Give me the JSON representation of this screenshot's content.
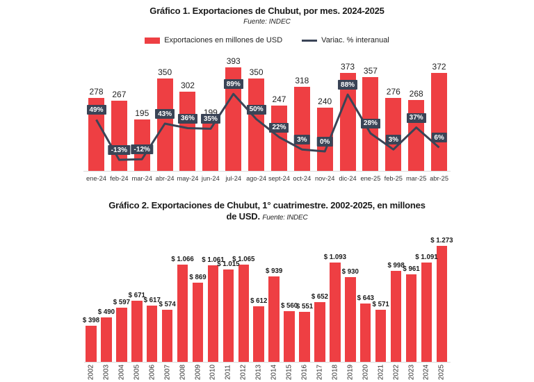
{
  "chart_data": [
    {
      "type": "bar",
      "title": "Gráfico 1. Exportaciones de Chubut, por mes. 2024-2025",
      "source": "Fuente: INDEC",
      "legend": {
        "bars": "Exportaciones en millones de USD",
        "line": "Variac. % interanual"
      },
      "categories": [
        "ene-24",
        "feb-24",
        "mar-24",
        "abr-24",
        "may-24",
        "jun-24",
        "jul-24",
        "ago-24",
        "sept-24",
        "oct-24",
        "nov-24",
        "dic-24",
        "ene-25",
        "feb-25",
        "mar-25",
        "abr-25"
      ],
      "series": [
        {
          "name": "Exportaciones en millones de USD",
          "type": "bar",
          "values": [
            278,
            267,
            195,
            350,
            302,
            199,
            393,
            350,
            247,
            318,
            240,
            373,
            357,
            276,
            268,
            372
          ]
        },
        {
          "name": "Variac. % interanual",
          "type": "line",
          "values": [
            49,
            -13,
            -12,
            43,
            36,
            35,
            89,
            50,
            22,
            3,
            0,
            88,
            28,
            3,
            37,
            6
          ],
          "labels": [
            "49%",
            "-13%",
            "-12%",
            "43%",
            "36%",
            "35%",
            "89%",
            "50%",
            "22%",
            "3%",
            "0%",
            "88%",
            "28%",
            "3%",
            "37%",
            "6%"
          ]
        }
      ],
      "colors": {
        "bar": "#ee3f43",
        "line": "#3a4456"
      },
      "ylim": [
        0,
        420
      ],
      "grid": false,
      "legend_position": "top"
    },
    {
      "type": "bar",
      "title_line1": "Gráfico 2. Exportaciones de Chubut, 1° cuatrimestre. 2002-2025, en millones",
      "title_line2": "de USD.",
      "source": "Fuente: INDEC",
      "categories": [
        "2002",
        "2003",
        "2004",
        "2005",
        "2006",
        "2007",
        "2008",
        "2009",
        "2010",
        "2011",
        "2012",
        "2013",
        "2014",
        "2015",
        "2016",
        "2017",
        "2018",
        "2019",
        "2020",
        "2021",
        "2022",
        "2023",
        "2024",
        "2025"
      ],
      "values": [
        398,
        490,
        597,
        671,
        617,
        574,
        1066,
        869,
        1061,
        1015,
        1065,
        612,
        939,
        560,
        551,
        652,
        1093,
        930,
        643,
        571,
        998,
        961,
        1091,
        1273
      ],
      "labels": [
        "$ 398",
        "$ 490",
        "$ 597",
        "$ 671",
        "$ 617",
        "$ 574",
        "$ 1.066",
        "$ 869",
        "$ 1.061",
        "$ 1.015",
        "$ 1.065",
        "$ 612",
        "$ 939",
        "$ 560",
        "$ 551",
        "$ 652",
        "$ 1.093",
        "$ 930",
        "$ 643",
        "$ 571",
        "$ 998",
        "$ 961",
        "$ 1.091",
        "$ 1.273"
      ],
      "color": "#ee3f43",
      "ylim": [
        0,
        1350
      ],
      "grid": false
    }
  ]
}
